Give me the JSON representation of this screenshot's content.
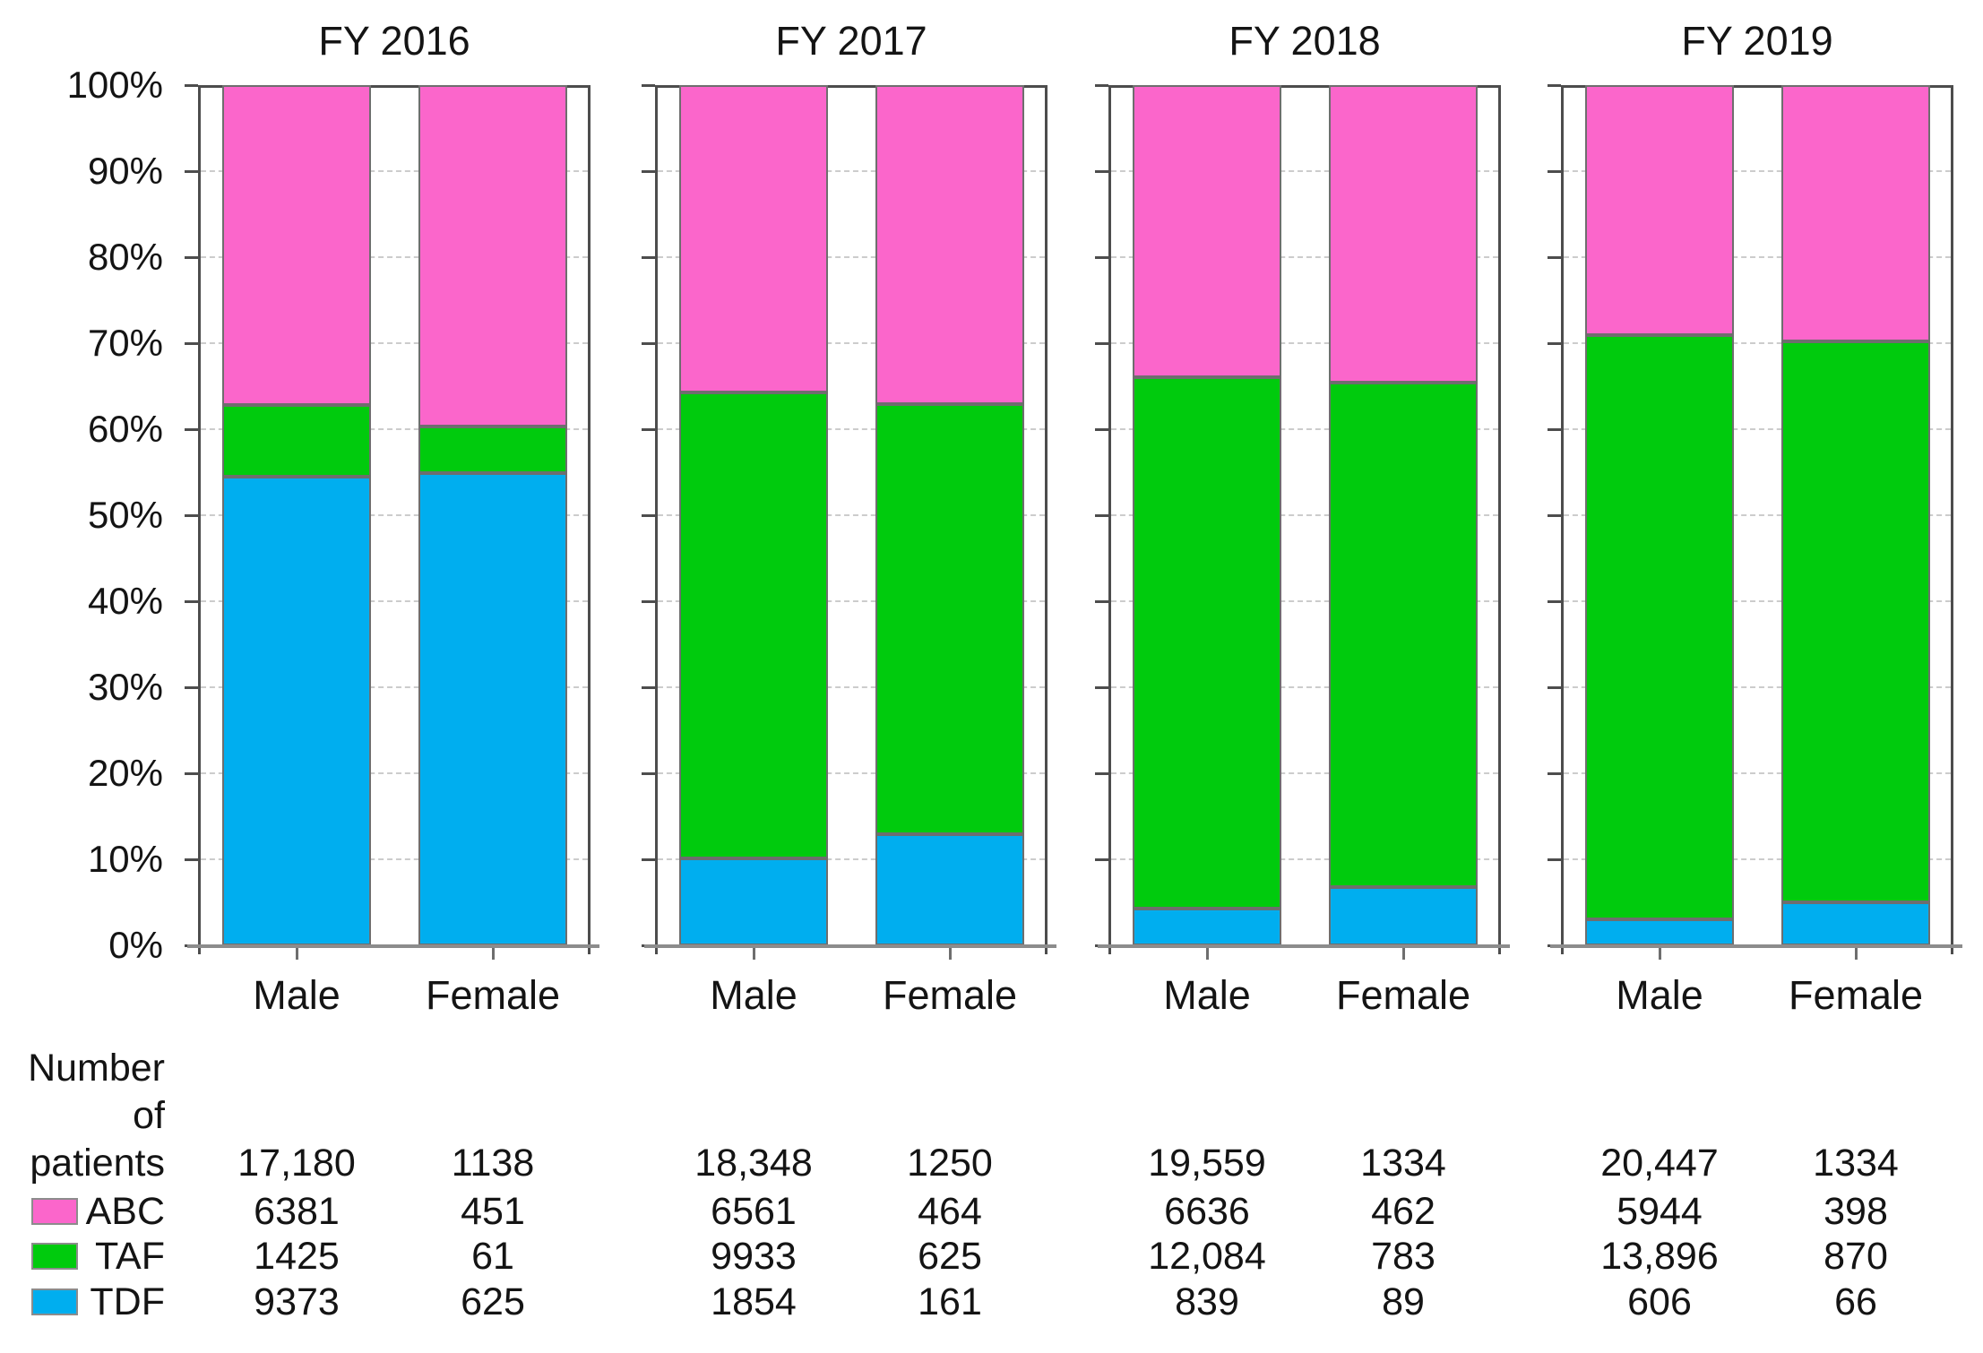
{
  "figure": {
    "background": "#ffffff"
  },
  "chart_data": {
    "type": "bar",
    "variant": "100-percent-stacked-column",
    "stack_order_bottom_to_top": [
      "TDF",
      "TAF",
      "ABC"
    ],
    "legend_position": "bottom-left-table",
    "grid": "dashed horizontal every 10%",
    "colors": {
      "ABC": "#fb66cb",
      "TAF": "#00cb0d",
      "TDF": "#00aeef"
    },
    "y_axis": {
      "min": 0,
      "max": 100,
      "tick_step": 10,
      "tick_labels": [
        "0%",
        "10%",
        "20%",
        "30%",
        "40%",
        "50%",
        "60%",
        "70%",
        "80%",
        "90%",
        "100%"
      ]
    },
    "row_header_lines": [
      "Number",
      "of",
      "patients"
    ],
    "series_labels": {
      "ABC": "ABC",
      "TAF": "TAF",
      "TDF": "TDF"
    },
    "panels": [
      {
        "title": "FY 2016",
        "groups": [
          {
            "label": "Male",
            "patients": "17,180",
            "values": {
              "ABC": 6381,
              "TAF": 1425,
              "TDF": 9373
            },
            "display": {
              "ABC": "6381",
              "TAF": "1425",
              "TDF": "9373"
            }
          },
          {
            "label": "Female",
            "patients": "1138",
            "values": {
              "ABC": 451,
              "TAF": 61,
              "TDF": 625
            },
            "display": {
              "ABC": "451",
              "TAF": "61",
              "TDF": "625"
            }
          }
        ]
      },
      {
        "title": "FY 2017",
        "groups": [
          {
            "label": "Male",
            "patients": "18,348",
            "values": {
              "ABC": 6561,
              "TAF": 9933,
              "TDF": 1854
            },
            "display": {
              "ABC": "6561",
              "TAF": "9933",
              "TDF": "1854"
            }
          },
          {
            "label": "Female",
            "patients": "1250",
            "values": {
              "ABC": 464,
              "TAF": 625,
              "TDF": 161
            },
            "display": {
              "ABC": "464",
              "TAF": "625",
              "TDF": "161"
            }
          }
        ]
      },
      {
        "title": "FY 2018",
        "groups": [
          {
            "label": "Male",
            "patients": "19,559",
            "values": {
              "ABC": 6636,
              "TAF": 12084,
              "TDF": 839
            },
            "display": {
              "ABC": "6636",
              "TAF": "12,084",
              "TDF": "839"
            }
          },
          {
            "label": "Female",
            "patients": "1334",
            "values": {
              "ABC": 462,
              "TAF": 783,
              "TDF": 89
            },
            "display": {
              "ABC": "462",
              "TAF": "783",
              "TDF": "89"
            }
          }
        ]
      },
      {
        "title": "FY 2019",
        "groups": [
          {
            "label": "Male",
            "patients": "20,447",
            "values": {
              "ABC": 5944,
              "TAF": 13896,
              "TDF": 606
            },
            "display": {
              "ABC": "5944",
              "TAF": "13,896",
              "TDF": "606"
            }
          },
          {
            "label": "Female",
            "patients": "1334",
            "values": {
              "ABC": 398,
              "TAF": 870,
              "TDF": 66
            },
            "display": {
              "ABC": "398",
              "TAF": "870",
              "TDF": "66"
            }
          }
        ]
      }
    ]
  }
}
